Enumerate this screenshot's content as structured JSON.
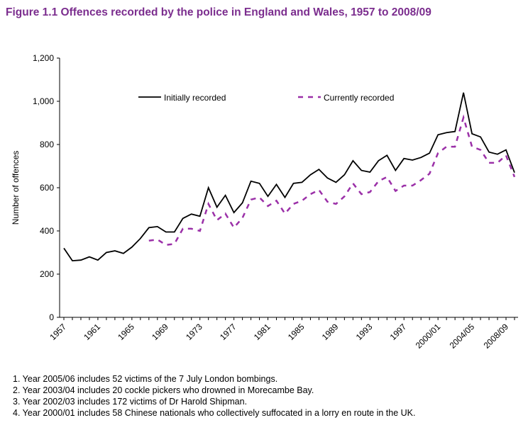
{
  "chart_data": {
    "type": "line",
    "title": "Figure 1.1 Offences recorded by the police in England and Wales, 1957 to 2008/09",
    "y_label": "Number of offences",
    "categories": [
      "1957",
      null,
      null,
      null,
      "1961",
      null,
      null,
      null,
      "1965",
      null,
      null,
      null,
      "1969",
      null,
      null,
      null,
      "1973",
      null,
      null,
      null,
      "1977",
      null,
      null,
      null,
      "1981",
      null,
      null,
      null,
      "1985",
      null,
      null,
      null,
      "1989",
      null,
      null,
      null,
      "1993",
      null,
      null,
      null,
      "1997",
      null,
      null,
      null,
      "2000/01",
      null,
      null,
      null,
      "2004/05",
      null,
      null,
      null,
      "2008/09",
      null
    ],
    "series": [
      {
        "name": "Initially recorded",
        "color": "#000000",
        "dash": false,
        "values": [
          320,
          262,
          265,
          280,
          265,
          300,
          308,
          296,
          325,
          365,
          415,
          420,
          395,
          395,
          458,
          478,
          468,
          600,
          510,
          565,
          485,
          530,
          630,
          620,
          560,
          615,
          555,
          620,
          625,
          660,
          685,
          645,
          625,
          660,
          725,
          680,
          672,
          725,
          750,
          680,
          735,
          728,
          740,
          760,
          845,
          855,
          860,
          1040,
          850,
          835,
          765,
          755,
          775,
          670
        ]
      },
      {
        "name": "Currently recorded",
        "color": "#9b30a8",
        "dash": true,
        "values": [
          null,
          null,
          null,
          null,
          null,
          null,
          null,
          null,
          null,
          null,
          355,
          360,
          335,
          340,
          410,
          410,
          400,
          525,
          450,
          480,
          415,
          460,
          545,
          555,
          515,
          540,
          480,
          525,
          540,
          570,
          590,
          535,
          525,
          560,
          620,
          570,
          580,
          630,
          650,
          585,
          610,
          610,
          635,
          665,
          760,
          790,
          790,
          925,
          790,
          775,
          715,
          715,
          750,
          650
        ]
      }
    ],
    "ylim": [
      0,
      1200
    ],
    "yticks": [
      0,
      200,
      400,
      600,
      800,
      {
        "value": 1000,
        "label": "1,000"
      },
      {
        "value": 1200,
        "label": "1,200"
      }
    ],
    "notes": [
      "1. Year 2005/06 includes 52 victims of the 7 July London bombings.",
      "2. Year 2003/04 includes 20 cockle pickers who drowned in Morecambe Bay.",
      "3. Year 2002/03 includes 172 victims of Dr Harold Shipman.",
      "4. Year 2000/01 includes 58 Chinese nationals who collectively suffocated in a lorry en route in the UK."
    ]
  }
}
